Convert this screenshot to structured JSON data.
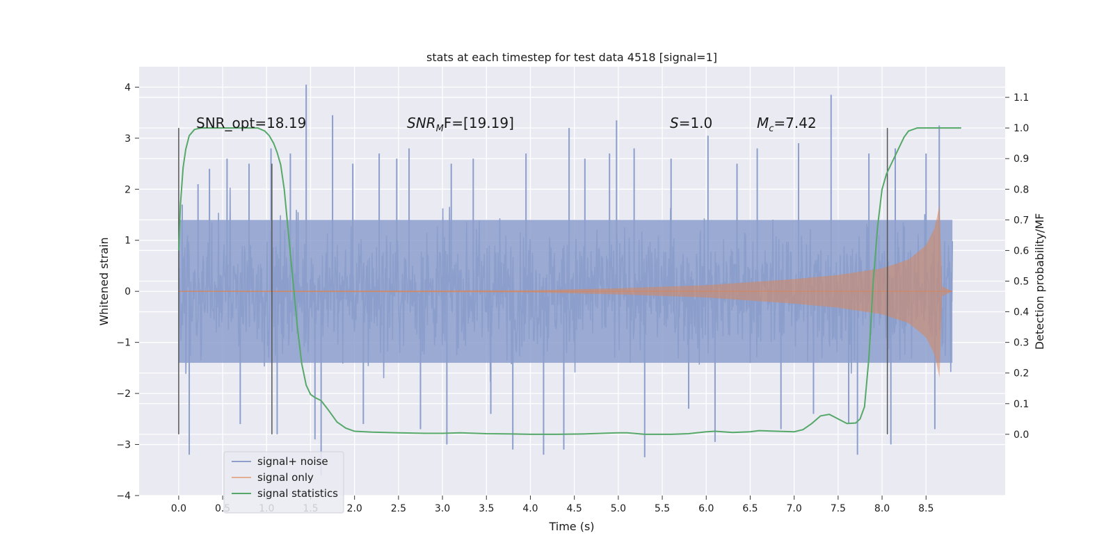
{
  "chart_data": {
    "type": "line",
    "title": "stats at each timestep for test data 4518 [signal=1]",
    "xlabel": "Time (s)",
    "ylabel_left": "Whitened strain",
    "ylabel_right": "Detection probability/MF",
    "xlim": [
      -0.45,
      9.4
    ],
    "ylim_left": [
      -4,
      4.4
    ],
    "ylim_right": [
      -0.2,
      1.2
    ],
    "grid": true,
    "x_ticks": [
      "0.0",
      "0.5",
      "1.0",
      "1.5",
      "2.0",
      "2.5",
      "3.0",
      "3.5",
      "4.0",
      "4.5",
      "5.0",
      "5.5",
      "6.0",
      "6.5",
      "7.0",
      "7.5",
      "8.0",
      "8.5"
    ],
    "y_ticks_left": [
      "−4",
      "−3",
      "−2",
      "−1",
      "0",
      "1",
      "2",
      "3",
      "4"
    ],
    "y_ticks_right": [
      "0.0",
      "0.1",
      "0.2",
      "0.3",
      "0.4",
      "0.5",
      "0.6",
      "0.7",
      "0.8",
      "0.9",
      "1.0",
      "1.1"
    ],
    "annotations": {
      "snr_opt": "SNR_opt=18.19",
      "snr_mf_main": "SNR",
      "snr_mf_sub": "M",
      "snr_mf_rest": "F=[19.19]",
      "s_main": "S",
      "s_rest": "=1.0",
      "mc_main": "M",
      "mc_sub": "c",
      "mc_rest": "=7.42"
    },
    "legend": {
      "position": "lower-left",
      "entries": [
        "signal+ noise",
        "signal only",
        "signal statistics"
      ]
    },
    "series": [
      {
        "name": "signal+ noise",
        "axis": "left",
        "color": "#8c9fcc",
        "x_range": [
          0,
          8.8
        ],
        "typical_band": [
          -1.4,
          1.4
        ],
        "peak_spikes": [
          {
            "x": 0.04,
            "y": 1.7
          },
          {
            "x": 0.12,
            "y": -3.2
          },
          {
            "x": 0.22,
            "y": 2.1
          },
          {
            "x": 0.35,
            "y": 2.4
          },
          {
            "x": 0.55,
            "y": 2.6
          },
          {
            "x": 0.7,
            "y": -2.6
          },
          {
            "x": 0.8,
            "y": 2.5
          },
          {
            "x": 1.05,
            "y": 2.8
          },
          {
            "x": 1.12,
            "y": -2.8
          },
          {
            "x": 1.27,
            "y": 2.7
          },
          {
            "x": 1.45,
            "y": 4.05
          },
          {
            "x": 1.55,
            "y": -2.9
          },
          {
            "x": 1.62,
            "y": -3.6
          },
          {
            "x": 1.75,
            "y": 3.45
          },
          {
            "x": 1.98,
            "y": 2.5
          },
          {
            "x": 2.1,
            "y": -2.6
          },
          {
            "x": 2.28,
            "y": 2.7
          },
          {
            "x": 2.48,
            "y": 2.6
          },
          {
            "x": 2.62,
            "y": 2.8
          },
          {
            "x": 2.75,
            "y": -2.7
          },
          {
            "x": 3.05,
            "y": -3.0
          },
          {
            "x": 3.1,
            "y": 2.5
          },
          {
            "x": 3.35,
            "y": 2.6
          },
          {
            "x": 3.55,
            "y": -2.4
          },
          {
            "x": 3.8,
            "y": -3.1
          },
          {
            "x": 3.95,
            "y": 2.7
          },
          {
            "x": 4.15,
            "y": -3.2
          },
          {
            "x": 4.38,
            "y": -3.1
          },
          {
            "x": 4.44,
            "y": 3.2
          },
          {
            "x": 4.62,
            "y": 2.6
          },
          {
            "x": 4.9,
            "y": 2.7
          },
          {
            "x": 4.98,
            "y": 3.35
          },
          {
            "x": 5.18,
            "y": 2.8
          },
          {
            "x": 5.3,
            "y": -3.25
          },
          {
            "x": 5.6,
            "y": 2.6
          },
          {
            "x": 5.8,
            "y": -2.3
          },
          {
            "x": 6.02,
            "y": 3.05
          },
          {
            "x": 6.1,
            "y": -2.95
          },
          {
            "x": 6.35,
            "y": 2.5
          },
          {
            "x": 6.58,
            "y": 2.8
          },
          {
            "x": 6.85,
            "y": -2.7
          },
          {
            "x": 7.05,
            "y": 2.9
          },
          {
            "x": 7.22,
            "y": -2.4
          },
          {
            "x": 7.42,
            "y": 3.85
          },
          {
            "x": 7.62,
            "y": -2.6
          },
          {
            "x": 7.72,
            "y": -3.2
          },
          {
            "x": 7.85,
            "y": 2.7
          },
          {
            "x": 8.1,
            "y": -3.0
          },
          {
            "x": 8.15,
            "y": 2.8
          },
          {
            "x": 8.5,
            "y": 2.7
          },
          {
            "x": 8.6,
            "y": -2.7
          },
          {
            "x": 8.65,
            "y": 3.25
          }
        ]
      },
      {
        "name": "signal only",
        "axis": "left",
        "color": "#dd8452",
        "x_range": [
          0,
          8.8
        ],
        "envelope": [
          {
            "x": 0.0,
            "amp": 0.01
          },
          {
            "x": 4.0,
            "amp": 0.02
          },
          {
            "x": 5.0,
            "amp": 0.06
          },
          {
            "x": 6.0,
            "amp": 0.12
          },
          {
            "x": 7.0,
            "amp": 0.24
          },
          {
            "x": 7.5,
            "amp": 0.32
          },
          {
            "x": 8.0,
            "amp": 0.45
          },
          {
            "x": 8.3,
            "amp": 0.62
          },
          {
            "x": 8.5,
            "amp": 0.9
          },
          {
            "x": 8.6,
            "amp": 1.25
          },
          {
            "x": 8.66,
            "amp": 1.75
          },
          {
            "x": 8.68,
            "amp": 0.1
          },
          {
            "x": 8.8,
            "amp": 0.0
          }
        ]
      },
      {
        "name": "signal statistics",
        "axis": "right",
        "color": "#55a868",
        "x": [
          0,
          0.02,
          0.05,
          0.08,
          0.12,
          0.18,
          0.25,
          0.4,
          0.6,
          0.8,
          0.9,
          0.98,
          1.03,
          1.08,
          1.12,
          1.16,
          1.2,
          1.25,
          1.3,
          1.35,
          1.4,
          1.45,
          1.5,
          1.55,
          1.62,
          1.7,
          1.8,
          1.9,
          2.0,
          2.2,
          2.5,
          2.8,
          3.0,
          3.2,
          3.5,
          3.8,
          4.0,
          4.3,
          4.6,
          4.9,
          5.0,
          5.1,
          5.3,
          5.6,
          5.8,
          6.0,
          6.1,
          6.3,
          6.5,
          6.6,
          6.8,
          7.0,
          7.1,
          7.2,
          7.3,
          7.4,
          7.5,
          7.6,
          7.7,
          7.75,
          7.8,
          7.85,
          7.9,
          7.95,
          8.0,
          8.05,
          8.1,
          8.15,
          8.2,
          8.25,
          8.3,
          8.4,
          8.6,
          8.9
        ],
        "y": [
          0.6,
          0.75,
          0.87,
          0.93,
          0.975,
          0.995,
          1.0,
          1.0,
          1.0,
          1.0,
          1.0,
          0.99,
          0.975,
          0.95,
          0.92,
          0.88,
          0.8,
          0.65,
          0.5,
          0.35,
          0.23,
          0.16,
          0.13,
          0.12,
          0.11,
          0.08,
          0.04,
          0.02,
          0.01,
          0.007,
          0.005,
          0.003,
          0.003,
          0.005,
          0.002,
          0.001,
          0.0,
          0.0,
          0.001,
          0.004,
          0.005,
          0.005,
          0.0,
          0.0,
          0.002,
          0.008,
          0.01,
          0.006,
          0.008,
          0.012,
          0.01,
          0.008,
          0.015,
          0.035,
          0.06,
          0.065,
          0.05,
          0.035,
          0.037,
          0.05,
          0.09,
          0.25,
          0.5,
          0.68,
          0.8,
          0.85,
          0.88,
          0.91,
          0.94,
          0.97,
          0.99,
          1.0,
          1.0,
          1.0
        ]
      }
    ],
    "vertical_markers": [
      {
        "x": 0.0,
        "y_range": [
          -2.8,
          3.2
        ]
      },
      {
        "x": 1.06,
        "y_range": [
          -2.8,
          2.5
        ]
      },
      {
        "x": 8.06,
        "y_range": [
          -2.8,
          3.2
        ]
      }
    ]
  }
}
